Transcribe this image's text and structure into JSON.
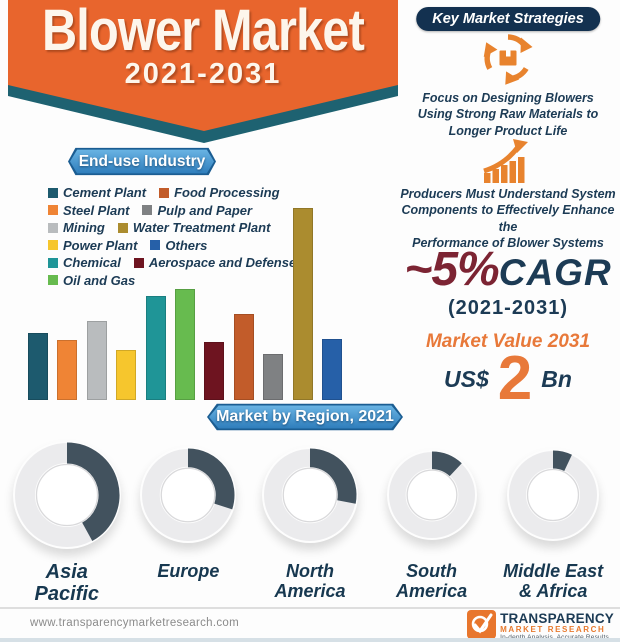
{
  "banner": {
    "title": "Blower Market",
    "subtitle": "2021-2031"
  },
  "strategies": {
    "header": "Key Market Strategies",
    "items": [
      {
        "icon": "recycle-package-icon",
        "text": "Focus on Designing Blowers Using Strong Raw Materials to Longer Product Life",
        "lines": [
          "Focus on Designing Blowers",
          "Using Strong Raw Materials to",
          "Longer Product Life"
        ]
      },
      {
        "icon": "growth-arrow-icon",
        "text": "Producers Must Understand System Components to Effectively Enhance the Performance of Blower Systems",
        "lines": [
          "Producers Must Understand System",
          "Components to Effectively Enhance the",
          "Performance of Blower Systems"
        ]
      }
    ]
  },
  "cagr": {
    "value": "~5%",
    "label": "CAGR",
    "period": "(2021-2031)"
  },
  "market_value": {
    "title": "Market Value 2031",
    "currency": "US$",
    "value": "2",
    "unit": "Bn"
  },
  "chart_data": [
    {
      "type": "bar",
      "title": "End-use Industry",
      "categories": [
        "Cement Plant",
        "Steel Plant",
        "Mining",
        "Power Plant",
        "Chemical",
        "Oil and Gas",
        "Aerospace and Defense",
        "Food Processing",
        "Pulp and Paper",
        "Water Treatment Plant",
        "Others"
      ],
      "values": [
        35,
        31,
        41,
        26,
        54,
        58,
        30,
        45,
        24,
        100,
        32
      ],
      "colors": [
        "#1d5a6e",
        "#ef8435",
        "#b9bcbe",
        "#f6c62d",
        "#1f9597",
        "#67bb4f",
        "#6e1420",
        "#c25c2a",
        "#7f8183",
        "#ab8c2f",
        "#2660a8"
      ],
      "xlabel": "",
      "ylabel": "Relative segment size (% of largest segment, unlabeled axis)",
      "ylim": [
        0,
        100
      ],
      "grid": false,
      "axes_visible": false,
      "legend_position": "above-left",
      "legend": [
        {
          "label": "Cement Plant",
          "color": "#1d5a6e"
        },
        {
          "label": "Food Processing",
          "color": "#c25c2a"
        },
        {
          "label": "Steel Plant",
          "color": "#ef8435"
        },
        {
          "label": "Pulp and Paper",
          "color": "#7f8183"
        },
        {
          "label": "Mining",
          "color": "#b9bcbe"
        },
        {
          "label": "Water Treatment Plant",
          "color": "#ab8c2f"
        },
        {
          "label": "Power Plant",
          "color": "#f6c62d"
        },
        {
          "label": "Others",
          "color": "#2660a8"
        },
        {
          "label": "Chemical",
          "color": "#1f9597"
        },
        {
          "label": "Aerospace and Defense",
          "color": "#6e1420"
        },
        {
          "label": "Oil and Gas",
          "color": "#67bb4f"
        }
      ]
    },
    {
      "type": "donut-set",
      "title": "Market by Region, 2021",
      "categories": [
        "Asia Pacific",
        "Europe",
        "North America",
        "South America",
        "Middle East & Africa"
      ],
      "values": [
        42,
        30,
        28,
        12,
        7
      ],
      "value_unit": "% share (estimated from arc angles)",
      "arc_color": "#42525e",
      "ring_color": "#ebebed",
      "display": {
        "sizes": [
          108,
          96,
          96,
          90,
          92
        ],
        "label_lines": [
          [
            "Asia",
            "Pacific"
          ],
          [
            "Europe"
          ],
          [
            "North",
            "America"
          ],
          [
            "South",
            "America"
          ],
          [
            "Middle East",
            "& Africa"
          ]
        ],
        "label_sizes": [
          20,
          18,
          18,
          18,
          18
        ]
      }
    }
  ],
  "colors": {
    "accent_orange": "#e8652d",
    "teal_shadow": "#1e6271",
    "navy_text": "#1c3b55",
    "maroon": "#7c2433",
    "ribbon_blue": "#2b7ab9"
  },
  "footer": {
    "url": "www.transparencymarketresearch.com",
    "logo": {
      "line1": "TRANSPARENCY",
      "line2": "MARKET RESEARCH",
      "tagline": "In-depth Analysis. Accurate Results"
    }
  }
}
